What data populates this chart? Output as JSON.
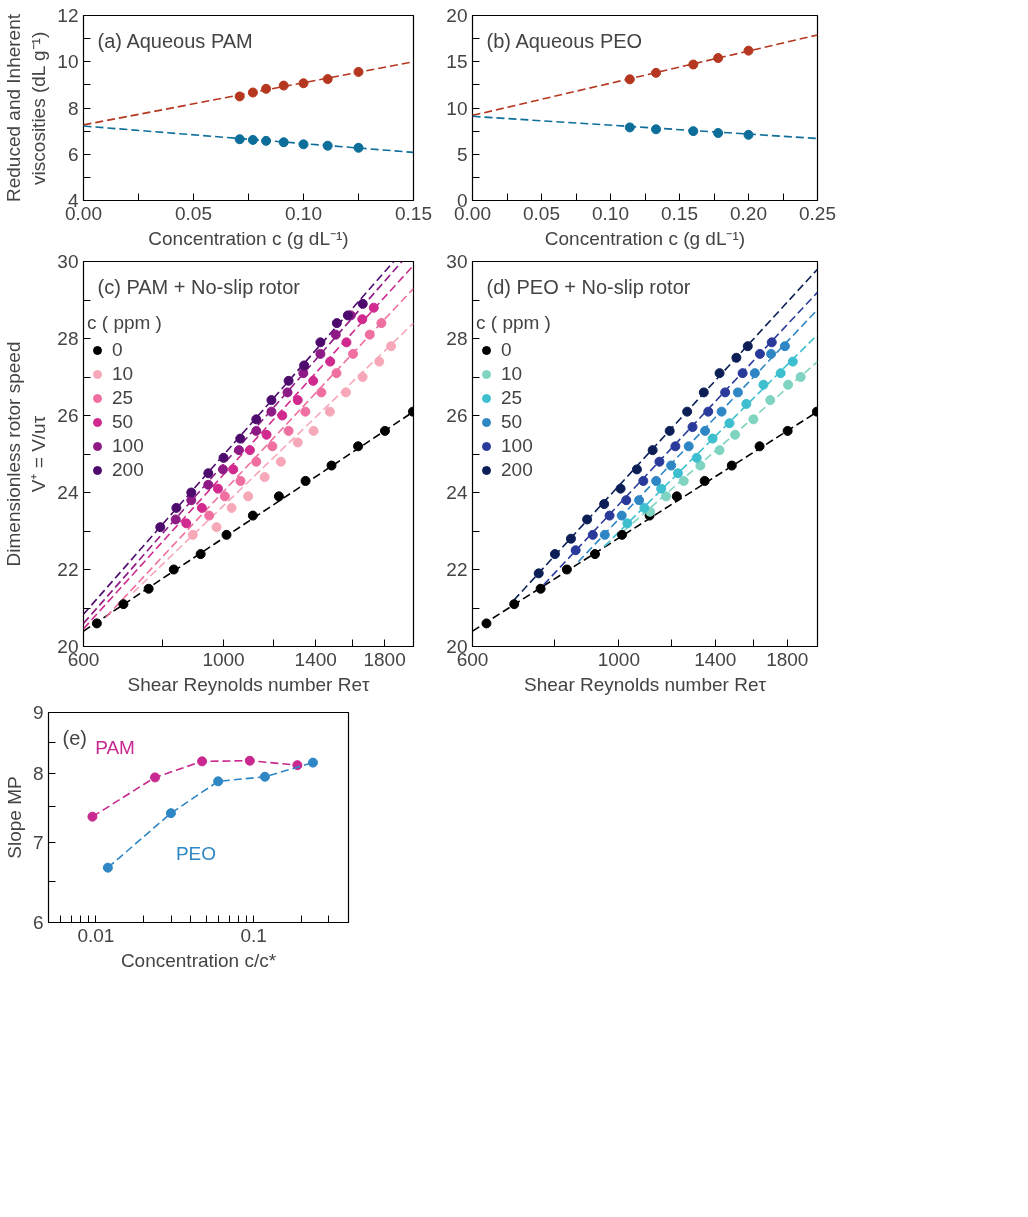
{
  "chart_data": [
    {
      "type": "scatter",
      "title": "(a)  Aqueous PAM",
      "xlabel": "Concentration c (g dL⁻¹)",
      "ylabel": "Reduced and Inherent\nviscosities (dL g⁻¹)",
      "xlim": [
        0,
        0.15
      ],
      "ylim": [
        4,
        12
      ],
      "xticks": [
        {
          "value": 0,
          "label": "0.00"
        },
        {
          "value": 0.025,
          "label": null
        },
        {
          "value": 0.05,
          "label": "0.05"
        },
        {
          "value": 0.075,
          "label": null
        },
        {
          "value": 0.1,
          "label": "0.10"
        },
        {
          "value": 0.125,
          "label": null
        },
        {
          "value": 0.15,
          "label": "0.15"
        }
      ],
      "yticks": [
        4,
        {
          "value": 5,
          "label": null
        },
        6,
        {
          "value": 7,
          "label": null
        },
        8,
        {
          "value": 9,
          "label": null
        },
        10,
        {
          "value": 11,
          "label": null
        },
        12
      ],
      "series": [
        {
          "type": "line",
          "color": "#b5371f",
          "x": [
            0,
            0.15
          ],
          "values": [
            7.27,
            10.0
          ],
          "line_style": "dashed",
          "marker": "none"
        },
        {
          "type": "line",
          "color": "#0d6e9a",
          "x": [
            0,
            0.15
          ],
          "values": [
            7.22,
            6.08
          ],
          "line_style": "dashed",
          "marker": "none"
        },
        {
          "type": "scatter",
          "color": "#b5371f",
          "x": [
            0.071,
            0.077,
            0.083,
            0.091,
            0.1,
            0.111,
            0.125
          ],
          "values": [
            8.5,
            8.67,
            8.83,
            8.97,
            9.07,
            9.25,
            9.56
          ],
          "marker": "circle"
        },
        {
          "type": "scatter",
          "color": "#0d6e9a",
          "x": [
            0.071,
            0.077,
            0.083,
            0.091,
            0.1,
            0.111,
            0.125
          ],
          "values": [
            6.65,
            6.62,
            6.58,
            6.52,
            6.43,
            6.37,
            6.28
          ],
          "marker": "circle"
        }
      ]
    },
    {
      "type": "scatter",
      "title": "(b)  Aqueous PEO",
      "xlabel": "Concentration c (g dL⁻¹)",
      "xlim": [
        0,
        0.25
      ],
      "ylim": [
        0,
        20
      ],
      "xticks": [
        {
          "value": 0,
          "label": "0.00"
        },
        {
          "value": 0.025,
          "label": null
        },
        {
          "value": 0.05,
          "label": "0.05"
        },
        {
          "value": 0.075,
          "label": null
        },
        {
          "value": 0.1,
          "label": "0.10"
        },
        {
          "value": 0.125,
          "label": null
        },
        {
          "value": 0.15,
          "label": "0.15"
        },
        {
          "value": 0.175,
          "label": null
        },
        {
          "value": 0.2,
          "label": "0.20"
        },
        {
          "value": 0.225,
          "label": null
        },
        {
          "value": 0.25,
          "label": "0.25"
        }
      ],
      "yticks": [
        0,
        {
          "value": 2.5,
          "label": null
        },
        5,
        {
          "value": 7.5,
          "label": null
        },
        10,
        {
          "value": 12.5,
          "label": null
        },
        15,
        {
          "value": 17.5,
          "label": null
        },
        20
      ],
      "series": [
        {
          "type": "line",
          "color": "#b5371f",
          "x": [
            0,
            0.25
          ],
          "values": [
            9.2,
            17.9
          ],
          "line_style": "dashed",
          "marker": "none"
        },
        {
          "type": "line",
          "color": "#0d6e9a",
          "x": [
            0,
            0.25
          ],
          "values": [
            9.1,
            6.7
          ],
          "line_style": "dashed",
          "marker": "none"
        },
        {
          "type": "scatter",
          "color": "#b5371f",
          "x": [
            0.114,
            0.133,
            0.16,
            0.178,
            0.2
          ],
          "values": [
            13.1,
            13.8,
            14.7,
            15.4,
            16.2
          ],
          "marker": "circle"
        },
        {
          "type": "scatter",
          "color": "#0d6e9a",
          "x": [
            0.114,
            0.133,
            0.16,
            0.178,
            0.2
          ],
          "values": [
            7.9,
            7.7,
            7.5,
            7.3,
            7.1
          ],
          "marker": "circle"
        }
      ]
    },
    {
      "type": "scatter",
      "title": "(c)  PAM + No-slip rotor",
      "xlabel": "Shear Reynolds number Reτ",
      "ylabel": "Dimensionless rotor speed\nV⁺ = V/uτ",
      "legend": "top left",
      "legend_title": "c ( ppm )",
      "log": "x",
      "xlim": [
        600,
        2000
      ],
      "ylim": [
        20,
        30
      ],
      "xticks": [
        600,
        {
          "value": 800,
          "label": null
        },
        1000,
        {
          "value": 1200,
          "label": null
        },
        1400,
        {
          "value": 1600,
          "label": null
        },
        1800
      ],
      "yticks": [
        20,
        {
          "value": 21,
          "label": null
        },
        22,
        {
          "value": 23,
          "label": null
        },
        24,
        {
          "value": 25,
          "label": null
        },
        26,
        {
          "value": 27,
          "label": null
        },
        28,
        {
          "value": 29,
          "label": null
        },
        30
      ],
      "series": [
        {
          "type": "line",
          "color": "#000000",
          "x": [
            600,
            2000
          ],
          "values": [
            20.4,
            26.1
          ],
          "line_style": "dashed",
          "marker": "none"
        },
        {
          "type": "line",
          "color": "#f7a8b8",
          "x": [
            719,
            2000
          ],
          "values": [
            21.4,
            28.4
          ],
          "line_style": "dashed",
          "marker": "none"
        },
        {
          "type": "line",
          "color": "#ee6fa0",
          "x": [
            651,
            2000
          ],
          "values": [
            20.76,
            29.3
          ],
          "line_style": "dashed",
          "marker": "none"
        },
        {
          "type": "line",
          "color": "#d02a8e",
          "x": [
            600,
            2000
          ],
          "values": [
            20.46,
            29.9
          ],
          "line_style": "dashed",
          "marker": "none"
        },
        {
          "type": "line",
          "color": "#8e1a86",
          "x": [
            600,
            1918
          ],
          "values": [
            20.6,
            30
          ],
          "line_style": "dashed",
          "marker": "none"
        },
        {
          "type": "line",
          "color": "#4e0b6e",
          "x": [
            600,
            1861
          ],
          "values": [
            20.84,
            30
          ],
          "line_style": "dashed",
          "marker": "none"
        },
        {
          "type": "scatter",
          "name": "0",
          "color": "#000000",
          "marker": "circle",
          "x": [
            630,
            694,
            761,
            834,
            920,
            1011,
            1113,
            1224,
            1349,
            1483,
            1634,
            1802,
            1996
          ],
          "values": [
            20.6,
            21.1,
            21.5,
            22.0,
            22.4,
            22.9,
            23.4,
            23.9,
            24.3,
            24.7,
            25.2,
            25.6,
            26.1
          ]
        },
        {
          "type": "scatter",
          "name": "10",
          "color": "#f7a8b8",
          "marker": "circle",
          "x": [
            894,
            975,
            1030,
            1094,
            1162,
            1233,
            1311,
            1389,
            1474,
            1563,
            1661,
            1765,
            1843
          ],
          "values": [
            22.9,
            23.1,
            23.6,
            23.9,
            24.4,
            24.8,
            25.3,
            25.6,
            26.1,
            26.6,
            27.0,
            27.4,
            27.8
          ]
        },
        {
          "type": "scatter",
          "name": "25",
          "color": "#ee6fa0",
          "marker": "circle",
          "x": [
            949,
            1005,
            1064,
            1127,
            1195,
            1268,
            1348,
            1429,
            1510,
            1604,
            1705,
            1779
          ],
          "values": [
            23.4,
            23.9,
            24.3,
            24.8,
            25.2,
            25.6,
            26.1,
            26.6,
            27.1,
            27.6,
            28.1,
            28.4
          ]
        },
        {
          "type": "scatter",
          "name": "50",
          "color": "#d02a8e",
          "marker": "circle",
          "x": [
            873,
            924,
            980,
            1036,
            1101,
            1170,
            1239,
            1311,
            1387,
            1476,
            1566,
            1659,
            1730
          ],
          "values": [
            23.2,
            23.6,
            24.1,
            24.6,
            25.1,
            25.5,
            26.0,
            26.4,
            26.9,
            27.4,
            27.9,
            28.5,
            28.8
          ]
        },
        {
          "type": "scatter",
          "name": "100",
          "color": "#8e1a86",
          "marker": "circle",
          "x": [
            840,
            889,
            946,
            998,
            1058,
            1127,
            1191,
            1263,
            1338,
            1424,
            1506,
            1591
          ],
          "values": [
            23.3,
            23.8,
            24.2,
            24.6,
            25.1,
            25.6,
            26.1,
            26.6,
            27.1,
            27.6,
            28.1,
            28.6
          ]
        },
        {
          "type": "scatter",
          "name": "200",
          "color": "#4e0b6e",
          "marker": "circle",
          "x": [
            794,
            842,
            889,
            946,
            1000,
            1063,
            1127,
            1191,
            1268,
            1342,
            1424,
            1512,
            1574,
            1662
          ],
          "values": [
            23.1,
            23.6,
            24.0,
            24.5,
            24.9,
            25.4,
            25.9,
            26.4,
            26.9,
            27.3,
            27.9,
            28.4,
            28.6,
            28.9
          ]
        }
      ]
    },
    {
      "type": "scatter",
      "title": "(d)  PEO + No-slip rotor",
      "xlabel": "Shear Reynolds number Reτ",
      "legend": "top left",
      "legend_title": "c ( ppm )",
      "log": "x",
      "xlim": [
        600,
        2000
      ],
      "ylim": [
        20,
        30
      ],
      "xticks": [
        600,
        {
          "value": 800,
          "label": null
        },
        1000,
        {
          "value": 1200,
          "label": null
        },
        1400,
        {
          "value": 1600,
          "label": null
        },
        1800
      ],
      "yticks": [
        20,
        {
          "value": 21,
          "label": null
        },
        22,
        {
          "value": 23,
          "label": null
        },
        24,
        {
          "value": 25,
          "label": null
        },
        26,
        {
          "value": 27,
          "label": null
        },
        28,
        {
          "value": 29,
          "label": null
        },
        30
      ],
      "series": [
        {
          "type": "line",
          "color": "#000000",
          "x": [
            600,
            2000
          ],
          "values": [
            20.4,
            26.1
          ],
          "line_style": "dashed",
          "marker": "none"
        },
        {
          "type": "line",
          "color": "#7fd4c1",
          "x": [
            1017,
            2000
          ],
          "values": [
            23.0,
            27.4
          ],
          "line_style": "dashed",
          "marker": "none"
        },
        {
          "type": "line",
          "color": "#3ebfcf",
          "x": [
            951,
            2000
          ],
          "values": [
            22.6,
            28.1
          ],
          "line_style": "dashed",
          "marker": "none"
        },
        {
          "type": "line",
          "color": "#2f86c4",
          "x": [
            868,
            2000
          ],
          "values": [
            22.2,
            28.75
          ],
          "line_style": "dashed",
          "marker": "none"
        },
        {
          "type": "line",
          "color": "#2a3a9a",
          "x": [
            769,
            2000
          ],
          "values": [
            21.6,
            29.2
          ],
          "line_style": "dashed",
          "marker": "none"
        },
        {
          "type": "line",
          "color": "#0b1f56",
          "x": [
            693,
            2000
          ],
          "values": [
            21.2,
            29.8
          ],
          "line_style": "dashed",
          "marker": "none"
        },
        {
          "type": "scatter",
          "name": "0",
          "color": "#000000",
          "marker": "circle",
          "x": [
            630,
            694,
            761,
            834,
            920,
            1011,
            1113,
            1224,
            1349,
            1483,
            1634,
            1802,
            1996
          ],
          "values": [
            20.6,
            21.1,
            21.5,
            22.0,
            22.4,
            22.9,
            23.4,
            23.9,
            24.3,
            24.7,
            25.2,
            25.6,
            26.1
          ]
        },
        {
          "type": "scatter",
          "name": "10",
          "color": "#7fd4c1",
          "marker": "circle",
          "x": [
            1115,
            1179,
            1254,
            1329,
            1421,
            1500,
            1599,
            1696,
            1805,
            1886
          ],
          "values": [
            23.5,
            23.9,
            24.3,
            24.7,
            25.1,
            25.5,
            25.9,
            26.4,
            26.8,
            27.0
          ]
        },
        {
          "type": "scatter",
          "name": "25",
          "color": "#3ebfcf",
          "marker": "circle",
          "x": [
            1030,
            1093,
            1159,
            1229,
            1312,
            1387,
            1471,
            1560,
            1656,
            1759,
            1835
          ],
          "values": [
            23.2,
            23.6,
            24.1,
            24.5,
            24.9,
            25.4,
            25.8,
            26.3,
            26.8,
            27.1,
            27.4
          ]
        },
        {
          "type": "scatter",
          "name": "50",
          "color": "#2f86c4",
          "marker": "circle",
          "x": [
            952,
            1010,
            1073,
            1139,
            1200,
            1276,
            1351,
            1431,
            1515,
            1607,
            1701,
            1785
          ],
          "values": [
            22.9,
            23.4,
            23.8,
            24.3,
            24.7,
            25.2,
            25.6,
            26.1,
            26.6,
            27.1,
            27.6,
            27.8
          ]
        },
        {
          "type": "scatter",
          "name": "100",
          "color": "#2a3a9a",
          "marker": "circle",
          "x": [
            860,
            913,
            968,
            1026,
            1089,
            1152,
            1218,
            1293,
            1366,
            1449,
            1540,
            1636,
            1705
          ],
          "values": [
            22.5,
            22.9,
            23.4,
            23.8,
            24.3,
            24.8,
            25.2,
            25.7,
            26.1,
            26.6,
            27.1,
            27.6,
            27.9
          ]
        },
        {
          "type": "scatter",
          "name": "200",
          "color": "#0b1f56",
          "marker": "circle",
          "x": [
            756,
            800,
            846,
            895,
            950,
            1006,
            1065,
            1125,
            1194,
            1269,
            1345,
            1421,
            1507,
            1568
          ],
          "values": [
            21.9,
            22.4,
            22.8,
            23.3,
            23.7,
            24.1,
            24.6,
            25.1,
            25.6,
            26.1,
            26.6,
            27.1,
            27.5,
            27.8
          ]
        }
      ]
    },
    {
      "type": "line",
      "title": "(e)",
      "xlabel": "Concentration c/c*",
      "ylabel": "Slope MP",
      "log": "xy",
      "marker": "circle",
      "line_style": "dashed",
      "xlim": [
        0.005,
        0.4
      ],
      "ylim": [
        6,
        9
      ],
      "xticks": [
        {
          "value": 0.005,
          "label": null
        },
        {
          "value": 0.006,
          "label": null
        },
        {
          "value": 0.007,
          "label": null
        },
        {
          "value": 0.008,
          "label": null
        },
        {
          "value": 0.009,
          "label": null
        },
        0.01,
        {
          "value": 0.02,
          "label": null
        },
        {
          "value": 0.03,
          "label": null
        },
        {
          "value": 0.04,
          "label": null
        },
        {
          "value": 0.05,
          "label": null
        },
        {
          "value": 0.06,
          "label": null
        },
        {
          "value": 0.07,
          "label": null
        },
        {
          "value": 0.08,
          "label": null
        },
        {
          "value": 0.09,
          "label": null
        },
        0.1,
        {
          "value": 0.2,
          "label": null
        },
        {
          "value": 0.3,
          "label": null
        },
        {
          "value": 0.4,
          "label": null
        }
      ],
      "yticks": [
        6,
        {
          "value": 6.5,
          "label": null
        },
        7,
        {
          "value": 7.5,
          "label": null
        },
        8,
        {
          "value": 8.5,
          "label": null
        },
        9
      ],
      "series": [
        {
          "name": "PAM",
          "color": "#c8288f",
          "x": [
            0.0095,
            0.0237,
            0.0471,
            0.0946,
            0.1896
          ],
          "values": [
            7.36,
            7.94,
            8.19,
            8.2,
            8.13
          ]
        },
        {
          "name": "PEO",
          "color": "#2f86c4",
          "x": [
            0.0119,
            0.0299,
            0.0596,
            0.118,
            0.238
          ],
          "values": [
            6.67,
            7.41,
            7.88,
            7.95,
            8.17
          ]
        }
      ]
    }
  ]
}
